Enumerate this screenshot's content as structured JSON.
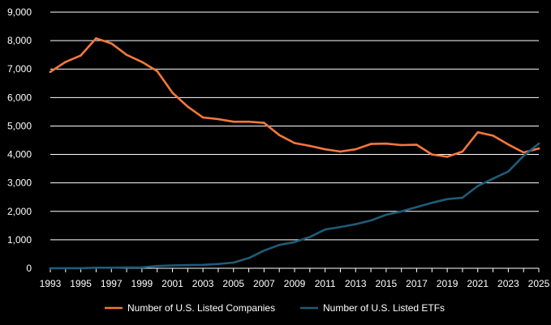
{
  "chart_data": {
    "type": "line",
    "title": "",
    "xlabel": "",
    "ylabel": "",
    "ylim": [
      0,
      9000
    ],
    "y_ticks": [
      0,
      1000,
      2000,
      3000,
      4000,
      5000,
      6000,
      7000,
      8000,
      9000
    ],
    "y_tick_labels": [
      "0",
      "1,000",
      "2,000",
      "3,000",
      "4,000",
      "5,000",
      "6,000",
      "7,000",
      "8,000",
      "9,000"
    ],
    "x_tick_labels": [
      "1993",
      "1995",
      "1997",
      "1999",
      "2001",
      "2003",
      "2005",
      "2007",
      "2009",
      "2011",
      "2013",
      "2015",
      "2017",
      "2019",
      "2021",
      "2023",
      "2025"
    ],
    "x": [
      1993,
      1994,
      1995,
      1996,
      1997,
      1998,
      1999,
      2000,
      2001,
      2002,
      2003,
      2004,
      2005,
      2006,
      2007,
      2008,
      2009,
      2010,
      2011,
      2012,
      2013,
      2014,
      2015,
      2016,
      2017,
      2018,
      2019,
      2020,
      2021,
      2022,
      2023,
      2024,
      2025
    ],
    "grid": true,
    "legend_position": "bottom",
    "series": [
      {
        "name": "Number of U.S. Listed Companies",
        "color": "#f4783c",
        "values": [
          6900,
          7250,
          7480,
          8080,
          7900,
          7500,
          7250,
          6930,
          6170,
          5680,
          5300,
          5240,
          5150,
          5150,
          5110,
          4680,
          4400,
          4300,
          4180,
          4100,
          4180,
          4370,
          4380,
          4330,
          4340,
          4000,
          3920,
          4100,
          4780,
          4660,
          4350,
          4070,
          4210
        ]
      },
      {
        "name": "Number of U.S. Listed ETFs",
        "color": "#1f5c78",
        "values": [
          1,
          2,
          3,
          20,
          20,
          29,
          30,
          80,
          100,
          110,
          120,
          150,
          200,
          360,
          620,
          820,
          920,
          1100,
          1360,
          1450,
          1550,
          1680,
          1880,
          2000,
          2150,
          2300,
          2430,
          2480,
          2890,
          3150,
          3400,
          3950,
          4380
        ]
      }
    ]
  }
}
